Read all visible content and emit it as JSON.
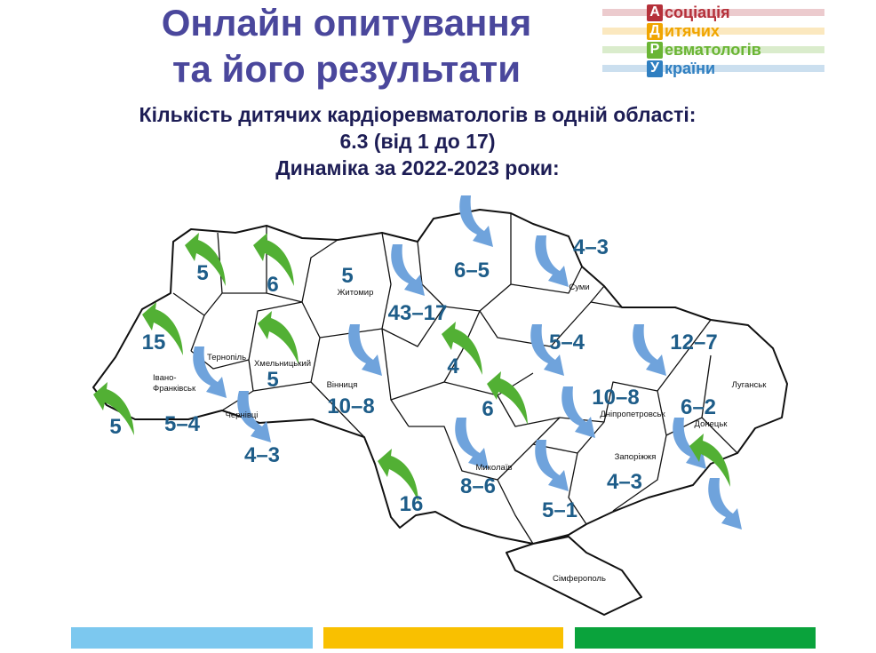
{
  "title": {
    "line1": "Онлайн опитування",
    "line2": "та його результати"
  },
  "subtitle": {
    "line1": "Кількість дитячих кардіоревматологів в одній області:",
    "line2": "6.3 (від 1 до 17)",
    "line3": "Динаміка за 2022-2023 роки:"
  },
  "logo": {
    "rows": [
      {
        "letter": "А",
        "rest": "соціація",
        "color": "#b5303a"
      },
      {
        "letter": "Д",
        "rest": "итячих",
        "color": "#f0a500"
      },
      {
        "letter": "Р",
        "rest": "евматологів",
        "color": "#6ab534"
      },
      {
        "letter": "У",
        "rest": "країни",
        "color": "#2f7fc1"
      }
    ]
  },
  "map": {
    "values": [
      {
        "region": "Волинь",
        "text": "5",
        "trend": "up"
      },
      {
        "region": "Рівне",
        "text": "6",
        "trend": "up"
      },
      {
        "region": "Житомир",
        "text": "5",
        "trend": "up"
      },
      {
        "region": "Київ",
        "text": "43–17",
        "trend": "down"
      },
      {
        "region": "Чернігів",
        "text": "6–5",
        "trend": "down"
      },
      {
        "region": "Суми",
        "text": "4–3",
        "trend": "down"
      },
      {
        "region": "Львів",
        "text": "15",
        "trend": "up"
      },
      {
        "region": "Хмельницький",
        "text": "5",
        "trend": "up"
      },
      {
        "region": "Вінниця",
        "text": "10–8",
        "trend": "down"
      },
      {
        "region": "Черкаси",
        "text": "4",
        "trend": "up"
      },
      {
        "region": "Полтава",
        "text": "5–4",
        "trend": "down"
      },
      {
        "region": "Харків",
        "text": "12–7",
        "trend": "down"
      },
      {
        "region": "Закарпаття",
        "text": "5",
        "trend": "up"
      },
      {
        "region": "Івано-Франківськ",
        "text": "5–4",
        "trend": "down"
      },
      {
        "region": "Чернівці",
        "text": "4–3",
        "trend": "down"
      },
      {
        "region": "Кіровоград",
        "text": "6",
        "trend": "up"
      },
      {
        "region": "Дніпропетровськ",
        "text": "10–8",
        "trend": "down"
      },
      {
        "region": "Донецьк",
        "text": "6–2",
        "trend": "down"
      },
      {
        "region": "Миколаїв",
        "text": "8–6",
        "trend": "down"
      },
      {
        "region": "Запоріжжя",
        "text": "4–3",
        "trend": "down"
      },
      {
        "region": "Одеса",
        "text": "16",
        "trend": "up"
      },
      {
        "region": "Херсон",
        "text": "5–1",
        "trend": "down"
      }
    ],
    "cities": [
      "Житомир",
      "Суми",
      "Тернопіль",
      "Хмельницький",
      "Вінниця",
      "Луганськ",
      "Івано-",
      "Франківськ",
      "Чернівці",
      "Дніпропетровськ",
      "Донецьк",
      "Миколаїв",
      "Запоріжжя",
      "Сімферополь"
    ],
    "colors": {
      "up": "#52b034",
      "down": "#6fa3dc",
      "number": "#1e5d89"
    }
  },
  "footer_bars": [
    "#7cc8ef",
    "#f9c000",
    "#0aa33c"
  ]
}
